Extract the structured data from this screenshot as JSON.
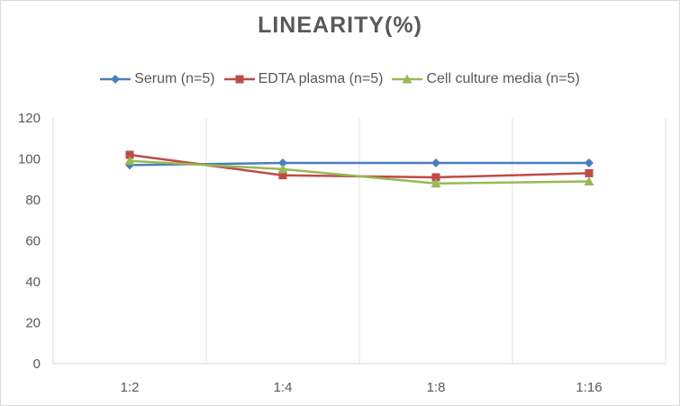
{
  "chart_data": {
    "type": "line",
    "title": "LINEARITY(%)",
    "xlabel": "",
    "ylabel": "",
    "categories": [
      "1:2",
      "1:4",
      "1:8",
      "1:16"
    ],
    "ylim": [
      0,
      120
    ],
    "yticks": [
      0,
      20,
      40,
      60,
      80,
      100,
      120
    ],
    "grid": "vertical-only",
    "legend_position": "top",
    "series": [
      {
        "name": "Serum (n=5)",
        "values": [
          97,
          98,
          98,
          98
        ],
        "color": "#4a7ebb",
        "marker": "diamond"
      },
      {
        "name": "EDTA plasma (n=5)",
        "values": [
          102,
          92,
          91,
          93
        ],
        "color": "#be4b48",
        "marker": "square"
      },
      {
        "name": "Cell culture media (n=5)",
        "values": [
          99,
          95,
          88,
          89
        ],
        "color": "#98b954",
        "marker": "triangle"
      }
    ]
  }
}
